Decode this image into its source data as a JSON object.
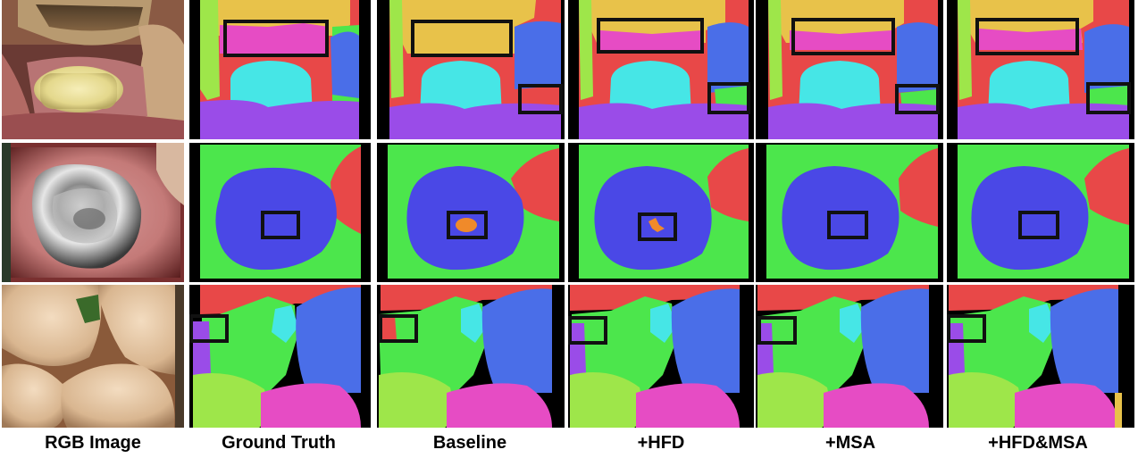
{
  "columns": [
    {
      "label": "RGB Image"
    },
    {
      "label": "Ground Truth"
    },
    {
      "label": "Baseline"
    },
    {
      "label": "+HFD"
    },
    {
      "label": "+MSA"
    },
    {
      "label": "+HFD&MSA"
    }
  ],
  "palette": {
    "black": "#000000",
    "yellow": "#e8c24a",
    "magenta": "#e64cc4",
    "red": "#e84848",
    "cyan": "#46e6e6",
    "purple": "#9a4ce8",
    "blue": "#4a6ee8",
    "green": "#4ce64c",
    "lime": "#9ee64a",
    "indigo": "#4a48e6",
    "orange": "#f08a2a",
    "box": "#111111"
  },
  "rows": [
    {
      "name": "row-1"
    },
    {
      "name": "row-2"
    },
    {
      "name": "row-3"
    }
  ]
}
